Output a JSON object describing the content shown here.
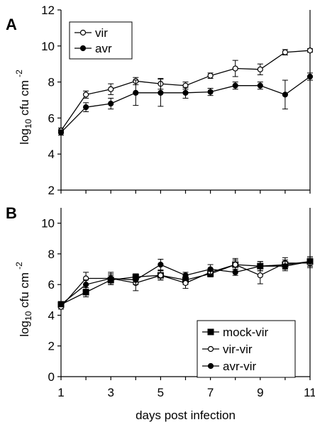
{
  "chart_data": [
    {
      "type": "line",
      "panel": "A",
      "ylabel": "log10 cfu cm-2",
      "ylabel_main": "log",
      "ylabel_sub": "10",
      "ylabel_rest": " cfu cm",
      "ylabel_sup": "-2",
      "xlabel": "",
      "xlim": [
        1,
        11
      ],
      "ylim": [
        2,
        12
      ],
      "yticks": [
        2,
        4,
        6,
        8,
        10,
        12
      ],
      "grid": false,
      "legend": "top-left",
      "series": [
        {
          "name": "vir",
          "marker": "open-circle",
          "x": [
            1,
            2,
            3,
            4,
            5,
            6,
            7,
            8,
            9,
            10,
            11
          ],
          "y": [
            5.3,
            7.3,
            7.6,
            8.05,
            7.9,
            7.8,
            8.35,
            8.75,
            8.7,
            9.65,
            9.75
          ],
          "err": [
            0.15,
            0.2,
            0.3,
            0.2,
            0.3,
            0.2,
            0.15,
            0.45,
            0.3,
            0.15,
            0.1
          ]
        },
        {
          "name": "avr",
          "marker": "filled-circle",
          "x": [
            1,
            2,
            3,
            4,
            5,
            6,
            7,
            8,
            9,
            10,
            11
          ],
          "y": [
            5.2,
            6.6,
            6.8,
            7.4,
            7.4,
            7.4,
            7.45,
            7.8,
            7.8,
            7.3,
            8.3
          ],
          "err": [
            0.15,
            0.25,
            0.3,
            0.7,
            0.75,
            0.3,
            0.2,
            0.2,
            0.2,
            0.8,
            0.2
          ]
        }
      ]
    },
    {
      "type": "line",
      "panel": "B",
      "ylabel": "log10 cfu cm-2",
      "ylabel_main": "log",
      "ylabel_sub": "10",
      "ylabel_rest": " cfu cm",
      "ylabel_sup": "-2",
      "xlabel": "days post infection",
      "xlim": [
        1,
        11
      ],
      "ylim": [
        0,
        11
      ],
      "yticks": [
        0,
        2,
        4,
        6,
        8,
        10
      ],
      "xticks": [
        1,
        3,
        5,
        7,
        9,
        11
      ],
      "grid": false,
      "legend": "bottom-right",
      "series": [
        {
          "name": "mock-vir",
          "marker": "filled-square",
          "x": [
            1,
            2,
            3,
            4,
            5,
            6,
            7,
            8,
            9,
            10,
            11
          ],
          "y": [
            4.7,
            5.5,
            6.3,
            6.5,
            6.6,
            6.3,
            6.7,
            7.3,
            7.2,
            7.3,
            7.5
          ],
          "err": [
            0.2,
            0.3,
            0.3,
            0.2,
            0.3,
            0.3,
            0.2,
            0.3,
            0.3,
            0.3,
            0.3
          ]
        },
        {
          "name": "vir-vir",
          "marker": "open-circle",
          "x": [
            1,
            2,
            3,
            4,
            5,
            6,
            7,
            8,
            9,
            10,
            11
          ],
          "y": [
            4.55,
            6.4,
            6.4,
            6.1,
            6.6,
            6.1,
            6.8,
            7.3,
            6.6,
            7.4,
            7.4
          ],
          "err": [
            0.15,
            0.4,
            0.4,
            0.5,
            0.3,
            0.35,
            0.25,
            0.4,
            0.55,
            0.35,
            0.3
          ]
        },
        {
          "name": "avr-vir",
          "marker": "filled-circle",
          "x": [
            1,
            2,
            3,
            4,
            5,
            6,
            7,
            8,
            9,
            10,
            11
          ],
          "y": [
            4.7,
            6.0,
            6.4,
            6.3,
            7.3,
            6.6,
            7.0,
            6.8,
            7.2,
            7.2,
            7.5
          ],
          "err": [
            0.15,
            0.3,
            0.3,
            0.3,
            0.35,
            0.2,
            0.3,
            0.2,
            0.3,
            0.3,
            0.3
          ]
        }
      ]
    }
  ]
}
